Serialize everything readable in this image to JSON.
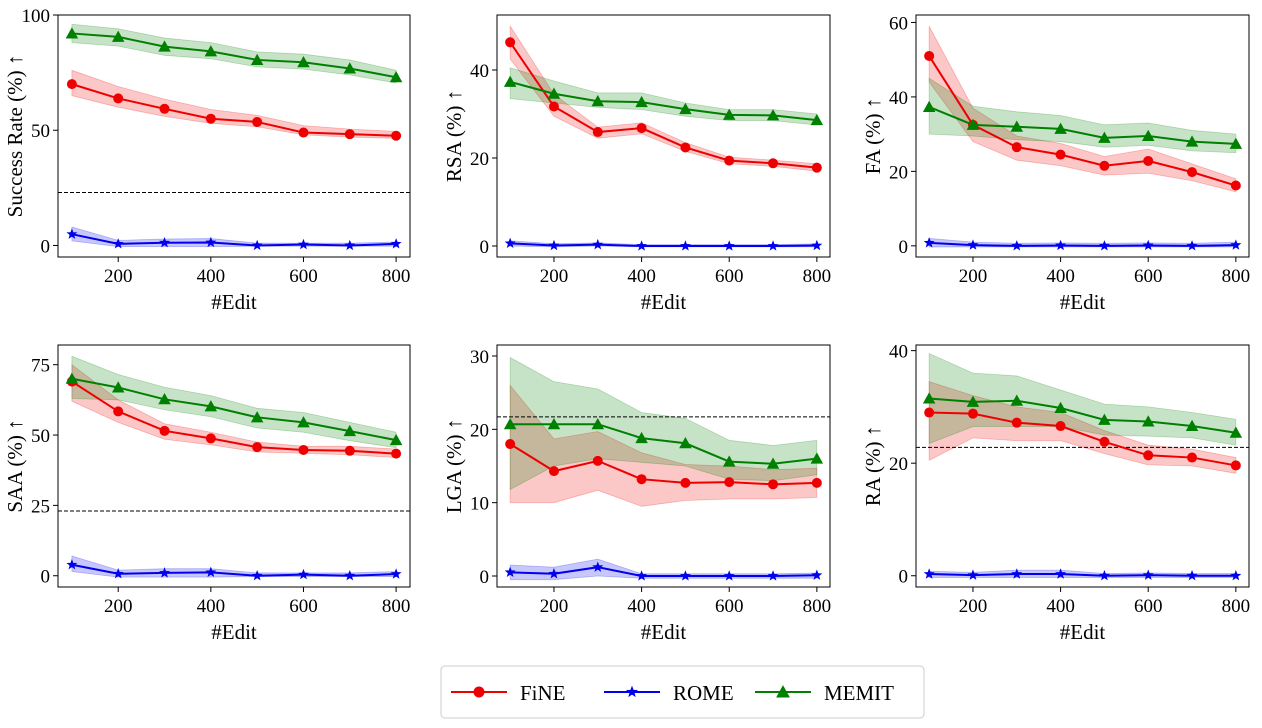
{
  "chart_data": [
    {
      "type": "line",
      "ylabel": "Success Rate (%) ↑",
      "xlabel": "#Edit",
      "x": [
        100,
        200,
        300,
        400,
        500,
        600,
        700,
        800
      ],
      "xticks": [
        200,
        400,
        600,
        800
      ],
      "xlim": [
        70,
        830
      ],
      "ylim": [
        -5,
        100
      ],
      "yticks": [
        0,
        50,
        100
      ],
      "hline": 23,
      "series": [
        {
          "name": "FiNE",
          "values": [
            70.0,
            63.8,
            59.3,
            55.0,
            53.6,
            49.0,
            48.3,
            47.6
          ],
          "lower": [
            65,
            60,
            56,
            53,
            51.5,
            48,
            47,
            46.5
          ],
          "upper": [
            76,
            69,
            63.5,
            59,
            56.5,
            52,
            50.5,
            49.5
          ]
        },
        {
          "name": "ROME",
          "values": [
            4.9,
            0.7,
            1.2,
            1.3,
            0.0,
            0.4,
            0.0,
            0.7
          ],
          "lower": [
            2,
            -0.5,
            -0.5,
            -0.5,
            -0.3,
            -0.3,
            -0.3,
            -0.3
          ],
          "upper": [
            8,
            2.2,
            2.8,
            3,
            1,
            1,
            1,
            1.5
          ]
        },
        {
          "name": "MEMIT",
          "values": [
            92.0,
            90.5,
            86.3,
            84.2,
            80.5,
            79.5,
            76.8,
            73.0
          ],
          "lower": [
            88,
            86.5,
            82.5,
            81,
            77.5,
            76.5,
            74,
            70.5
          ],
          "upper": [
            96,
            94,
            90,
            88,
            84,
            83,
            80.5,
            76
          ]
        }
      ]
    },
    {
      "type": "line",
      "ylabel": "RSA (%) ↑",
      "xlabel": "#Edit",
      "x": [
        100,
        200,
        300,
        400,
        500,
        600,
        700,
        800
      ],
      "xticks": [
        200,
        400,
        600,
        800
      ],
      "xlim": [
        70,
        830
      ],
      "ylim": [
        -2.5,
        52.5
      ],
      "yticks": [
        0,
        20,
        40
      ],
      "hline": null,
      "series": [
        {
          "name": "FiNE",
          "values": [
            46.3,
            31.7,
            25.9,
            26.8,
            22.4,
            19.4,
            18.8,
            17.8
          ],
          "lower": [
            42.5,
            29.5,
            24.5,
            25.5,
            21.5,
            18.7,
            18.1,
            17
          ],
          "upper": [
            50,
            34.5,
            27,
            28,
            23.5,
            20.2,
            19.5,
            18.7
          ]
        },
        {
          "name": "ROME",
          "values": [
            0.6,
            0.1,
            0.3,
            0.0,
            0.0,
            0.0,
            0.0,
            0.1
          ],
          "lower": [
            0,
            -0.2,
            0,
            -0.2,
            -0.2,
            -0.2,
            -0.2,
            -0.2
          ],
          "upper": [
            1.2,
            0.5,
            0.7,
            0.3,
            0.3,
            0.3,
            0.3,
            0.5
          ]
        },
        {
          "name": "MEMIT",
          "values": [
            37.3,
            34.6,
            32.9,
            32.7,
            31.1,
            29.8,
            29.7,
            28.6
          ],
          "lower": [
            33.5,
            32.5,
            31.5,
            31,
            29.5,
            28.5,
            28.5,
            27.5
          ],
          "upper": [
            40.5,
            37.5,
            34.8,
            34.8,
            32.5,
            31,
            31,
            30
          ]
        }
      ]
    },
    {
      "type": "line",
      "ylabel": "FA (%) ↑",
      "xlabel": "#Edit",
      "x": [
        100,
        200,
        300,
        400,
        500,
        600,
        700,
        800
      ],
      "xticks": [
        200,
        400,
        600,
        800
      ],
      "xlim": [
        70,
        830
      ],
      "ylim": [
        -3,
        62
      ],
      "yticks": [
        0,
        20,
        40,
        60
      ],
      "hline": null,
      "series": [
        {
          "name": "FiNE",
          "values": [
            51.0,
            32.5,
            26.5,
            24.5,
            21.5,
            22.8,
            19.8,
            16.2
          ],
          "lower": [
            44,
            28,
            23,
            21.5,
            19,
            19.5,
            17.5,
            14.5
          ],
          "upper": [
            59,
            37,
            29.5,
            27.5,
            24,
            26,
            22,
            18
          ]
        },
        {
          "name": "ROME",
          "values": [
            0.8,
            0.2,
            0.0,
            0.1,
            0.0,
            0.1,
            0.0,
            0.2
          ],
          "lower": [
            -0.3,
            -0.3,
            -0.3,
            -0.3,
            -0.3,
            -0.3,
            -0.3,
            -0.3
          ],
          "upper": [
            2,
            1,
            0.7,
            0.8,
            0.7,
            0.8,
            0.7,
            1
          ]
        },
        {
          "name": "MEMIT",
          "values": [
            37.3,
            32.5,
            32.0,
            31.4,
            29.0,
            29.5,
            28.0,
            27.4
          ],
          "lower": [
            30,
            29.5,
            28.5,
            28,
            26.5,
            27,
            25.5,
            25
          ],
          "upper": [
            45,
            37.5,
            36,
            35,
            32.5,
            33,
            31,
            30
          ]
        }
      ]
    },
    {
      "type": "line",
      "ylabel": "SAA (%) ↑",
      "xlabel": "#Edit",
      "x": [
        100,
        200,
        300,
        400,
        500,
        600,
        700,
        800
      ],
      "xticks": [
        200,
        400,
        600,
        800
      ],
      "xlim": [
        70,
        830
      ],
      "ylim": [
        -4,
        82
      ],
      "yticks": [
        0,
        25,
        50,
        75
      ],
      "hline": 23,
      "series": [
        {
          "name": "FiNE",
          "values": [
            69.0,
            58.4,
            51.5,
            48.8,
            45.7,
            44.7,
            44.4,
            43.4
          ],
          "lower": [
            62,
            54.5,
            48.5,
            46.5,
            44,
            43.5,
            43,
            42
          ],
          "upper": [
            75,
            62.5,
            54,
            51,
            47.5,
            46,
            46,
            45
          ]
        },
        {
          "name": "ROME",
          "values": [
            3.9,
            0.7,
            1.0,
            1.2,
            0.0,
            0.4,
            0.0,
            0.6
          ],
          "lower": [
            1.5,
            -0.5,
            -0.5,
            -0.5,
            -0.3,
            -0.3,
            -0.3,
            -0.3
          ],
          "upper": [
            7,
            2,
            2.5,
            2.5,
            1,
            1,
            1,
            1.5
          ]
        },
        {
          "name": "MEMIT",
          "values": [
            70.0,
            66.9,
            62.7,
            60.2,
            56.3,
            54.5,
            51.4,
            48.2
          ],
          "lower": [
            63,
            62.5,
            59,
            56.5,
            52.5,
            51,
            48,
            45.5
          ],
          "upper": [
            78,
            71.5,
            67,
            64,
            59.5,
            58,
            54.5,
            51
          ]
        }
      ]
    },
    {
      "type": "line",
      "ylabel": "LGA (%) ↑",
      "xlabel": "#Edit",
      "x": [
        100,
        200,
        300,
        400,
        500,
        600,
        700,
        800
      ],
      "xticks": [
        200,
        400,
        600,
        800
      ],
      "xlim": [
        70,
        830
      ],
      "ylim": [
        -1.5,
        31.5
      ],
      "yticks": [
        0,
        10,
        20,
        30
      ],
      "hline": 21.7,
      "series": [
        {
          "name": "FiNE",
          "values": [
            18.0,
            14.3,
            15.7,
            13.2,
            12.7,
            12.8,
            12.5,
            12.7
          ],
          "lower": [
            10,
            10,
            11.7,
            9.5,
            10.3,
            10.5,
            10.5,
            10.7
          ],
          "upper": [
            26,
            18.7,
            19.7,
            16.8,
            15.2,
            15,
            14.5,
            14.7
          ]
        },
        {
          "name": "ROME",
          "values": [
            0.5,
            0.3,
            1.2,
            0.0,
            0.0,
            0.0,
            0.0,
            0.1
          ],
          "lower": [
            -0.5,
            -0.5,
            0,
            -0.3,
            -0.3,
            -0.3,
            -0.3,
            -0.3
          ],
          "upper": [
            1.5,
            1.2,
            2.3,
            0.3,
            0.3,
            0.3,
            0.3,
            0.4
          ]
        },
        {
          "name": "MEMIT",
          "values": [
            20.7,
            20.7,
            20.7,
            18.8,
            18.1,
            15.6,
            15.3,
            16.0
          ],
          "lower": [
            11.8,
            15,
            16,
            15.5,
            15,
            13.2,
            13,
            13.8
          ],
          "upper": [
            29.8,
            26.5,
            25.5,
            22.3,
            21.5,
            18.5,
            17.8,
            18.5
          ]
        }
      ]
    },
    {
      "type": "line",
      "ylabel": "RA (%) ↑",
      "xlabel": "#Edit",
      "x": [
        100,
        200,
        300,
        400,
        500,
        600,
        700,
        800
      ],
      "xticks": [
        200,
        400,
        600,
        800
      ],
      "xlim": [
        70,
        830
      ],
      "ylim": [
        -2,
        41
      ],
      "yticks": [
        0,
        20,
        40
      ],
      "hline": 22.8,
      "series": [
        {
          "name": "FiNE",
          "values": [
            29.0,
            28.8,
            27.2,
            26.6,
            23.8,
            21.4,
            21.0,
            19.6
          ],
          "lower": [
            20.5,
            24.5,
            24,
            24,
            21.7,
            19.7,
            19.5,
            18.2
          ],
          "upper": [
            34.5,
            32,
            30,
            29,
            25.8,
            23.2,
            22.5,
            21
          ]
        },
        {
          "name": "ROME",
          "values": [
            0.3,
            0.1,
            0.3,
            0.3,
            0.0,
            0.1,
            0.0,
            0.0
          ],
          "lower": [
            -0.3,
            -0.3,
            -0.3,
            -0.3,
            -0.3,
            -0.3,
            -0.3,
            -0.3
          ],
          "upper": [
            0.8,
            0.6,
            1,
            1,
            0.4,
            0.5,
            0.4,
            0.4
          ]
        },
        {
          "name": "MEMIT",
          "values": [
            31.5,
            30.9,
            31.1,
            29.8,
            27.7,
            27.4,
            26.6,
            25.4
          ],
          "lower": [
            23.5,
            26.5,
            26.5,
            26.5,
            25,
            24.8,
            24.5,
            23.2
          ],
          "upper": [
            39.5,
            36,
            35.5,
            33,
            30.5,
            30,
            29,
            27.8
          ]
        }
      ]
    }
  ],
  "legend": {
    "placement": "bottom-center",
    "entries": [
      {
        "name": "FiNE",
        "color": "#ee0000",
        "marker": "circle"
      },
      {
        "name": "ROME",
        "color": "#0000ee",
        "marker": "star"
      },
      {
        "name": "MEMIT",
        "color": "#008000",
        "marker": "triangle"
      }
    ]
  },
  "colors": {
    "FiNE": "#ee0000",
    "ROME": "#0000ee",
    "MEMIT": "#008000"
  }
}
